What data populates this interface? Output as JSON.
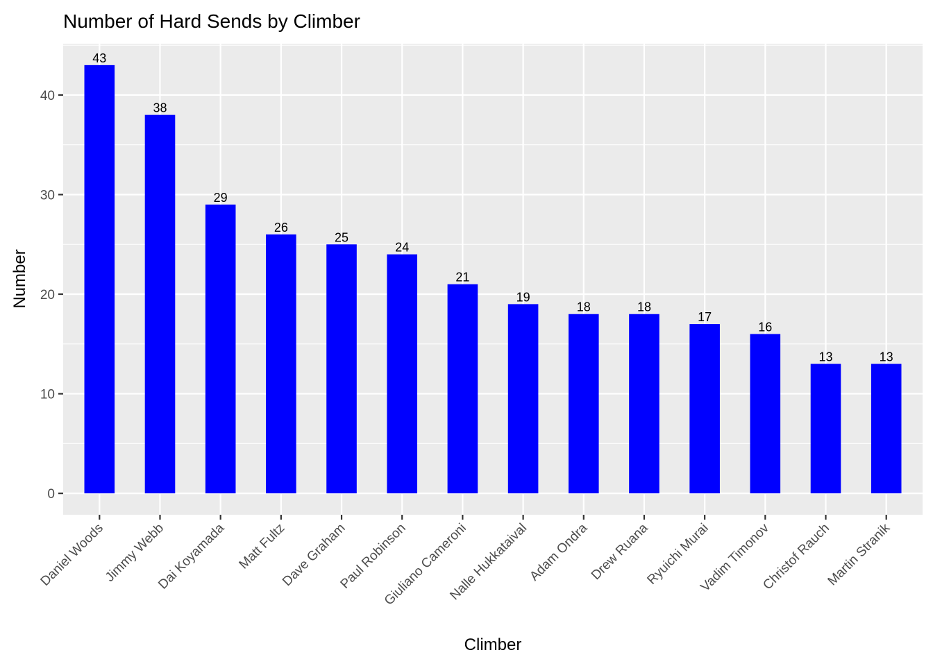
{
  "chart_data": {
    "type": "bar",
    "title": "Number of Hard Sends by Climber",
    "xlabel": "Climber",
    "ylabel": "Number",
    "categories": [
      "Daniel Woods",
      "Jimmy Webb",
      "Dai Koyamada",
      "Matt Fultz",
      "Dave Graham",
      "Paul Robinson",
      "Giuliano Cameroni",
      "Nalle Hukkataival",
      "Adam Ondra",
      "Drew Ruana",
      "Ryuichi Murai",
      "Vadim Timonov",
      "Christof Rauch",
      "Martin Stranik"
    ],
    "values": [
      43,
      38,
      29,
      26,
      25,
      24,
      21,
      19,
      18,
      18,
      17,
      16,
      13,
      13
    ],
    "data_labels": [
      "43",
      "38",
      "29",
      "26",
      "25",
      "24",
      "21",
      "19",
      "18",
      "18",
      "17",
      "16",
      "13",
      "13"
    ],
    "ylim": [
      -2.15,
      45.15
    ],
    "yticks": [
      0,
      10,
      20,
      30,
      40
    ],
    "ytick_labels": [
      "0",
      "10",
      "20",
      "30",
      "40"
    ],
    "bar_color": "#0000ff",
    "panel_color": "#ebebeb",
    "grid": true,
    "legend": "none"
  }
}
